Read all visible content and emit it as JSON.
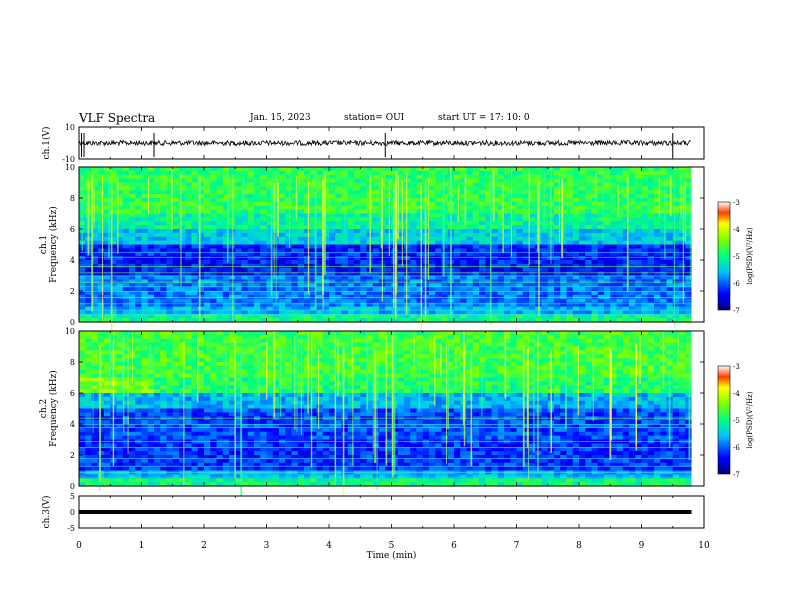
{
  "header": {
    "title": "VLF Spectra",
    "date": "Jan. 15, 2023",
    "station": "station= OUI",
    "start": "start  UT =   17: 10: 0"
  },
  "chart_data": [
    {
      "type": "line",
      "name": "ch1-waveform",
      "ylabel": "ch.1(V)",
      "ylim": [
        -10,
        10
      ],
      "tick_labels": [
        "10",
        "-10"
      ],
      "x": [
        0,
        9.8
      ],
      "baseline": 0,
      "description_values": {
        "level": 0
      }
    },
    {
      "type": "heatmap",
      "name": "ch1-spectrogram",
      "ylabel": "ch.1\nFrequency (kHz)",
      "ylabel_lines": [
        "ch.1",
        "Frequency (kHz)"
      ],
      "ylim": [
        0,
        10
      ],
      "yticks": [
        0,
        2,
        4,
        6,
        8,
        10
      ],
      "xlim": [
        0,
        9.8
      ],
      "colorbar": {
        "label": "log(PSD)(V²/Hz)",
        "range": [
          -7,
          -3
        ],
        "ticks": [
          "-3",
          "-4",
          "-5",
          "-6",
          "-7"
        ]
      }
    },
    {
      "type": "heatmap",
      "name": "ch2-spectrogram",
      "ylabel": "ch.2\nFrequency (kHz)",
      "ylabel_lines": [
        "ch.2",
        "Frequency (kHz)"
      ],
      "ylim": [
        0,
        10
      ],
      "yticks": [
        0,
        2,
        4,
        6,
        8,
        10
      ],
      "xlim": [
        0,
        9.8
      ],
      "colorbar": {
        "label": "log(PSD)(V²/Hz)",
        "range": [
          -7,
          -3
        ],
        "ticks": [
          "-3",
          "-4",
          "-5",
          "-6",
          "-7"
        ]
      }
    },
    {
      "type": "line",
      "name": "ch3-waveform",
      "ylabel": "ch.3(V)",
      "ylim": [
        -5,
        5
      ],
      "tick_labels": [
        "5",
        "0",
        "-5"
      ],
      "x": [
        0,
        9.8
      ],
      "baseline": 0
    }
  ],
  "x_axis": {
    "label": "Time (min)",
    "ticks": [
      "0",
      "1",
      "2",
      "3",
      "4",
      "5",
      "6",
      "7",
      "8",
      "9",
      "10"
    ],
    "xlim": [
      0,
      10
    ]
  }
}
